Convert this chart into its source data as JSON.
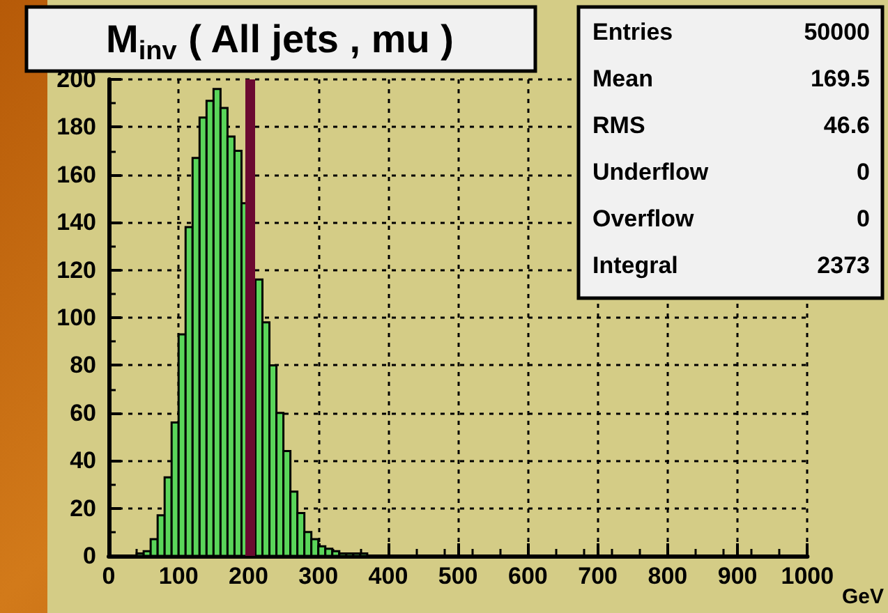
{
  "chart_data": {
    "type": "histogram",
    "title": "M$_{inv}$ ( All jets , mu )",
    "xlabel": "GeV",
    "bins": [
      0,
      10,
      20,
      30,
      40,
      50,
      60,
      70,
      80,
      90,
      100,
      110,
      120,
      130,
      140,
      150,
      160,
      170,
      180,
      190,
      200,
      210,
      220,
      230,
      240,
      250,
      260,
      270,
      280,
      290,
      300,
      310,
      320,
      330,
      340,
      350,
      360,
      370,
      380,
      390,
      400,
      410,
      420,
      430,
      440,
      450,
      460,
      470,
      480,
      490,
      500,
      510,
      520,
      530,
      540,
      550,
      560,
      570,
      580,
      590,
      600,
      610,
      620,
      630,
      640,
      650,
      660,
      670,
      680,
      690,
      700,
      710,
      720,
      730,
      740,
      750,
      760,
      770,
      780,
      790,
      800,
      810,
      820,
      830,
      840,
      850,
      860,
      870,
      880,
      890,
      900,
      910,
      920,
      930,
      940,
      950,
      960,
      970,
      980,
      990,
      1000
    ],
    "values": [
      0,
      0,
      0,
      0,
      1,
      2,
      7,
      17,
      33,
      56,
      93,
      138,
      167,
      184,
      191,
      196,
      188,
      176,
      170,
      148,
      null,
      116,
      98,
      80,
      60,
      44,
      27,
      18,
      10,
      7,
      4,
      3,
      2,
      1,
      1,
      1,
      1,
      0,
      0,
      0,
      0,
      0,
      0,
      0,
      0,
      0,
      0,
      0,
      0,
      0,
      0,
      0,
      0,
      0,
      0,
      0,
      0,
      0,
      0,
      0,
      0,
      0,
      0,
      0,
      0,
      0,
      0,
      0,
      0,
      0,
      0,
      0,
      0,
      0,
      0,
      0,
      0,
      0,
      0,
      0,
      0,
      0,
      0,
      0,
      0,
      0,
      0,
      0,
      0,
      0,
      0,
      0,
      0,
      0,
      0,
      0,
      0,
      0,
      0,
      0
    ],
    "color": "#5ad55a",
    "xlim": [
      0,
      1000
    ],
    "xticks": [
      0,
      100,
      200,
      300,
      400,
      500,
      600,
      700,
      800,
      900,
      1000
    ],
    "ylim": [
      0,
      200
    ],
    "yticks": [
      0,
      20,
      40,
      60,
      80,
      100,
      120,
      140,
      160,
      180,
      200
    ],
    "grid": true,
    "ref_lines": [
      {
        "axis": "x",
        "value": 203,
        "color": "#6b0a30"
      }
    ],
    "annotations": [
      "Entries",
      "50000",
      "Mean",
      "169.5",
      "RMS",
      "46.6",
      "Underflow",
      "0",
      "Overflow",
      "0",
      "Integral",
      "2373"
    ]
  }
}
